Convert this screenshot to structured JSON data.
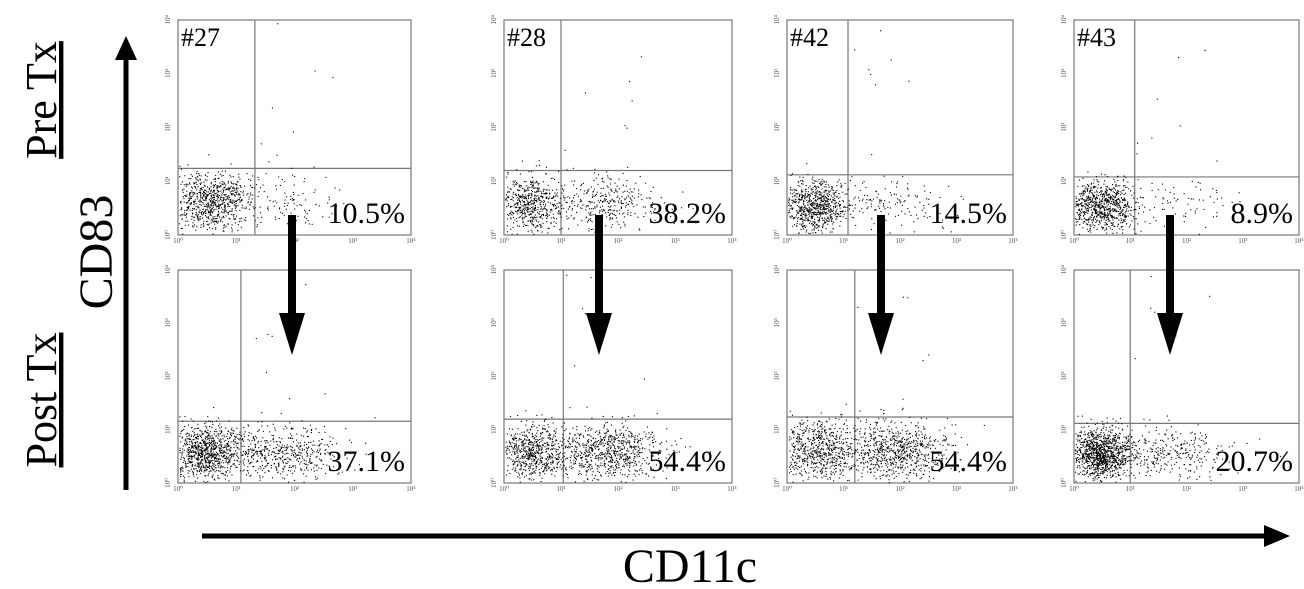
{
  "figure": {
    "row_labels": [
      "Pre Tx",
      "Post Tx"
    ],
    "y_axis_label": "CD83",
    "x_axis_label": "CD11c"
  },
  "chart_data": [
    {
      "type": "scatter",
      "sample": "#27",
      "condition": "Pre Tx",
      "quadrant_percent_label": "10.5%",
      "quadrant_percent": 10.5,
      "x_scale": "log",
      "y_scale": "log",
      "xlim": [
        1,
        10000
      ],
      "ylim": [
        1,
        10000
      ],
      "x_ticks": [
        "10⁰",
        "10¹",
        "10²",
        "10³",
        "10⁴"
      ],
      "y_ticks": [
        "10⁰",
        "10¹",
        "10²",
        "10³",
        "10⁴"
      ],
      "gate_x": 10,
      "gate_y": 10
    },
    {
      "type": "scatter",
      "sample": "#28",
      "condition": "Pre Tx",
      "quadrant_percent_label": "38.2%",
      "quadrant_percent": 38.2,
      "x_scale": "log",
      "y_scale": "log",
      "xlim": [
        1,
        10000
      ],
      "ylim": [
        1,
        10000
      ],
      "x_ticks": [
        "10⁰",
        "10¹",
        "10²",
        "10³",
        "10⁴"
      ],
      "y_ticks": [
        "10⁰",
        "10¹",
        "10²",
        "10³",
        "10⁴"
      ],
      "gate_x": 10,
      "gate_y": 10
    },
    {
      "type": "scatter",
      "sample": "#42",
      "condition": "Pre Tx",
      "quadrant_percent_label": "14.5%",
      "quadrant_percent": 14.5,
      "x_scale": "log",
      "y_scale": "log",
      "xlim": [
        1,
        10000
      ],
      "ylim": [
        1,
        10000
      ],
      "x_ticks": [
        "10⁰",
        "10¹",
        "10²",
        "10³",
        "10⁴"
      ],
      "y_ticks": [
        "10⁰",
        "10¹",
        "10²",
        "10³",
        "10⁴"
      ],
      "gate_x": 10,
      "gate_y": 10
    },
    {
      "type": "scatter",
      "sample": "#43",
      "condition": "Pre Tx",
      "quadrant_percent_label": "8.9%",
      "quadrant_percent": 8.9,
      "x_scale": "log",
      "y_scale": "log",
      "xlim": [
        1,
        10000
      ],
      "ylim": [
        1,
        10000
      ],
      "x_ticks": [
        "10⁰",
        "10¹",
        "10²",
        "10³",
        "10⁴"
      ],
      "y_ticks": [
        "10⁰",
        "10¹",
        "10²",
        "10³",
        "10⁴"
      ],
      "gate_x": 10,
      "gate_y": 10
    },
    {
      "type": "scatter",
      "sample": "",
      "condition": "Post Tx",
      "quadrant_percent_label": "37.1%",
      "quadrant_percent": 37.1,
      "x_scale": "log",
      "y_scale": "log",
      "xlim": [
        1,
        10000
      ],
      "ylim": [
        1,
        10000
      ],
      "x_ticks": [
        "10⁰",
        "10¹",
        "10²",
        "10³",
        "10⁴"
      ],
      "y_ticks": [
        "10⁰",
        "10¹",
        "10²",
        "10³",
        "10⁴"
      ],
      "gate_x": 10,
      "gate_y": 10
    },
    {
      "type": "scatter",
      "sample": "",
      "condition": "Post Tx",
      "quadrant_percent_label": "54.4%",
      "quadrant_percent": 54.4,
      "x_scale": "log",
      "y_scale": "log",
      "xlim": [
        1,
        10000
      ],
      "ylim": [
        1,
        10000
      ],
      "x_ticks": [
        "10⁰",
        "10¹",
        "10²",
        "10³",
        "10⁴"
      ],
      "y_ticks": [
        "10⁰",
        "10¹",
        "10²",
        "10³",
        "10⁴"
      ],
      "gate_x": 10,
      "gate_y": 10
    },
    {
      "type": "scatter",
      "sample": "",
      "condition": "Post Tx",
      "quadrant_percent_label": "54.4%",
      "quadrant_percent": 54.4,
      "x_scale": "log",
      "y_scale": "log",
      "xlim": [
        1,
        10000
      ],
      "ylim": [
        1,
        10000
      ],
      "x_ticks": [
        "10⁰",
        "10¹",
        "10²",
        "10³",
        "10⁴"
      ],
      "y_ticks": [
        "10⁰",
        "10¹",
        "10²",
        "10³",
        "10⁴"
      ],
      "gate_x": 10,
      "gate_y": 10
    },
    {
      "type": "scatter",
      "sample": "",
      "condition": "Post Tx",
      "quadrant_percent_label": "20.7%",
      "quadrant_percent": 20.7,
      "x_scale": "log",
      "y_scale": "log",
      "xlim": [
        1,
        10000
      ],
      "ylim": [
        1,
        10000
      ],
      "x_ticks": [
        "10⁰",
        "10¹",
        "10²",
        "10³",
        "10⁴"
      ],
      "y_ticks": [
        "10⁰",
        "10¹",
        "10²",
        "10³",
        "10⁴"
      ],
      "gate_x": 10,
      "gate_y": 10
    }
  ],
  "colors": {
    "ink": "#000000",
    "gate": "#777777",
    "background": "#ffffff"
  }
}
